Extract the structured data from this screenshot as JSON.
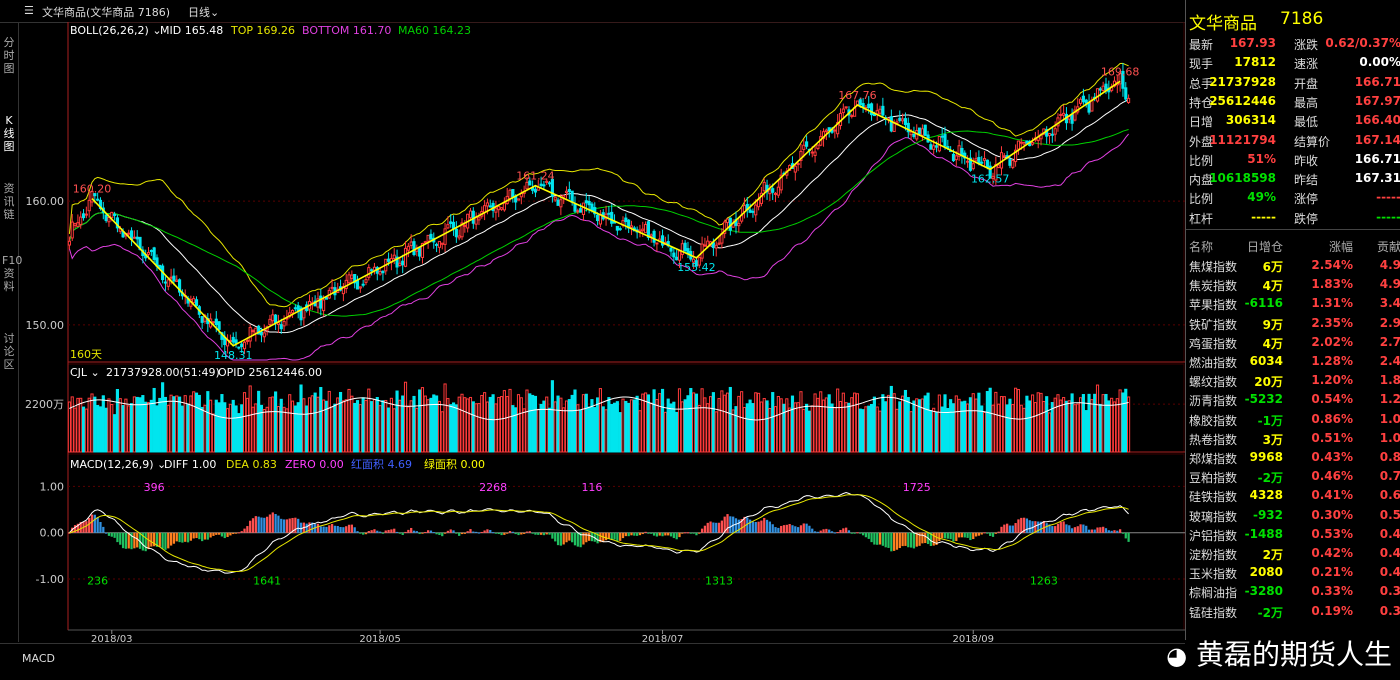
{
  "header": {
    "title": "文华商品(文华商品 7186)",
    "period": "日线"
  },
  "left_tabs": [
    "分时图",
    "K线图",
    "资讯链",
    "F10资料",
    "讨论区"
  ],
  "bottom_tab": "MACD",
  "watermark": "黄磊的期货人生",
  "quote": {
    "name": "文华商品",
    "code": "7186",
    "rows": [
      {
        "l1": "最新",
        "v1": "167.93",
        "c1": "red",
        "l2": "涨跌",
        "v2": "0.62/0.37%",
        "c2": "red"
      },
      {
        "l1": "现手",
        "v1": "17812",
        "c1": "yel",
        "l2": "速涨",
        "v2": "0.00%",
        "c2": "wht"
      },
      {
        "l1": "总手",
        "v1": "21737928",
        "c1": "yel",
        "l2": "开盘",
        "v2": "166.71",
        "c2": "red"
      },
      {
        "l1": "持仓",
        "v1": "25612446",
        "c1": "yel",
        "l2": "最高",
        "v2": "167.97",
        "c2": "red"
      },
      {
        "l1": "日增",
        "v1": "306314",
        "c1": "yel",
        "l2": "最低",
        "v2": "166.40",
        "c2": "red"
      },
      {
        "l1": "外盘",
        "v1": "11121794",
        "c1": "red",
        "l2": "结算价",
        "v2": "167.14",
        "c2": "red"
      },
      {
        "l1": "比例",
        "v1": "51%",
        "c1": "red",
        "l2": "昨收",
        "v2": "166.71",
        "c2": "wht"
      },
      {
        "l1": "内盘",
        "v1": "10618598",
        "c1": "grn",
        "l2": "昨结",
        "v2": "167.31",
        "c2": "wht"
      },
      {
        "l1": "比例",
        "v1": "49%",
        "c1": "grn",
        "l2": "涨停",
        "v2": "-----",
        "c2": "red"
      },
      {
        "l1": "杠杆",
        "v1": "-----",
        "c1": "yel",
        "l2": "跌停",
        "v2": "-----",
        "c2": "grn"
      }
    ],
    "table_headers": [
      "名称",
      "日增仓",
      "涨幅",
      "贡献"
    ],
    "table": [
      {
        "name": "焦煤指数",
        "inc": "6万",
        "chg": "2.54%",
        "contrib": "4.9"
      },
      {
        "name": "焦炭指数",
        "inc": "4万",
        "chg": "1.83%",
        "contrib": "4.9"
      },
      {
        "name": "苹果指数",
        "inc": "-6116",
        "chg": "1.31%",
        "contrib": "3.4"
      },
      {
        "name": "铁矿指数",
        "inc": "9万",
        "chg": "2.35%",
        "contrib": "2.9"
      },
      {
        "name": "鸡蛋指数",
        "inc": "4万",
        "chg": "2.02%",
        "contrib": "2.7"
      },
      {
        "name": "燃油指数",
        "inc": "6034",
        "chg": "1.28%",
        "contrib": "2.4"
      },
      {
        "name": "螺纹指数",
        "inc": "20万",
        "chg": "1.20%",
        "contrib": "1.8"
      },
      {
        "name": "沥青指数",
        "inc": "-5232",
        "chg": "0.54%",
        "contrib": "1.2"
      },
      {
        "name": "橡胶指数",
        "inc": "-1万",
        "chg": "0.86%",
        "contrib": "1.0"
      },
      {
        "name": "热卷指数",
        "inc": "3万",
        "chg": "0.51%",
        "contrib": "1.0"
      },
      {
        "name": "郑煤指数",
        "inc": "9968",
        "chg": "0.43%",
        "contrib": "0.8"
      },
      {
        "name": "豆粕指数",
        "inc": "-2万",
        "chg": "0.46%",
        "contrib": "0.7"
      },
      {
        "name": "硅铁指数",
        "inc": "4328",
        "chg": "0.41%",
        "contrib": "0.6"
      },
      {
        "name": "玻璃指数",
        "inc": "-932",
        "chg": "0.30%",
        "contrib": "0.5"
      },
      {
        "name": "沪铝指数",
        "inc": "-1488",
        "chg": "0.53%",
        "contrib": "0.4"
      },
      {
        "name": "淀粉指数",
        "inc": "2万",
        "chg": "0.42%",
        "contrib": "0.4"
      },
      {
        "name": "玉米指数",
        "inc": "2080",
        "chg": "0.21%",
        "contrib": "0.4"
      },
      {
        "name": "棕榈油指",
        "inc": "-3280",
        "chg": "0.33%",
        "contrib": "0.3"
      },
      {
        "name": "锰硅指数",
        "inc": "-2万",
        "chg": "0.19%",
        "contrib": "0.3"
      }
    ]
  },
  "chart_data": {
    "type": "candlestick",
    "bar_count": 160,
    "bar_count_label": "160天",
    "price_axis": {
      "ticks": [
        150.0,
        160.0
      ],
      "tick_labels": [
        "150.00",
        "160.00"
      ],
      "range": [
        147.0,
        173.5
      ]
    },
    "boll_legend": {
      "name": "BOLL(26,26,2)",
      "MID": "MID 165.48",
      "TOP": "TOP 169.26",
      "BOTTOM": "BOTTOM 161.70",
      "MA60": "MA60 164.23"
    },
    "pivots": [
      {
        "i": 8,
        "v": 160.2,
        "label": "160.20",
        "kind": "high"
      },
      {
        "i": 58,
        "v": 148.31,
        "label": "148.31",
        "kind": "low"
      },
      {
        "i": 165,
        "v": 161.24,
        "label": "161.24",
        "kind": "high"
      },
      {
        "i": 222,
        "v": 155.42,
        "label": "155.42",
        "kind": "low"
      },
      {
        "i": 279,
        "v": 167.76,
        "label": "167.76",
        "kind": "high"
      },
      {
        "i": 326,
        "v": 162.57,
        "label": "162.57",
        "kind": "low"
      },
      {
        "i": 372,
        "v": 169.68,
        "label": "169.68",
        "kind": "high"
      }
    ],
    "volume_legend": {
      "name": "CJL",
      "vol": "21737928.00(51:49)",
      "opid": "OPID 25612446.00"
    },
    "volume_axis": {
      "tick": 22000000,
      "tick_label": "2200万",
      "max": 34000000
    },
    "macd_legend": {
      "name": "MACD(12,26,9)",
      "DIFF": "DIFF 1.00",
      "DEA": "DEA 0.83",
      "ZERO": "ZERO 0.00",
      "RED": "红面积 4.69",
      "GREEN": "绿面积 0.00"
    },
    "macd_axis": {
      "ticks": [
        1.0,
        0.0,
        -1.0
      ],
      "tick_labels": [
        "1.00",
        "0.00",
        "-1.00"
      ],
      "range": [
        -2.1,
        1.7
      ]
    },
    "macd_area_labels": [
      {
        "i": 10,
        "label": "236",
        "color": "#00e000",
        "side": "below"
      },
      {
        "i": 30,
        "label": "396",
        "color": "#ff40ff",
        "side": "above"
      },
      {
        "i": 70,
        "label": "1641",
        "color": "#00e000",
        "side": "below"
      },
      {
        "i": 150,
        "label": "2268",
        "color": "#ff40ff",
        "side": "above"
      },
      {
        "i": 185,
        "label": "116",
        "color": "#ff40ff",
        "side": "above"
      },
      {
        "i": 230,
        "label": "1313",
        "color": "#00e000",
        "side": "below"
      },
      {
        "i": 300,
        "label": "1725",
        "color": "#ff40ff",
        "side": "above"
      },
      {
        "i": 345,
        "label": "1263",
        "color": "#00e000",
        "side": "below"
      }
    ],
    "x_labels": [
      {
        "i": 15,
        "label": "2018/03"
      },
      {
        "i": 110,
        "label": "2018/05"
      },
      {
        "i": 210,
        "label": "2018/07"
      },
      {
        "i": 320,
        "label": "2018/09"
      }
    ],
    "colors": {
      "up": "#ff3a3a",
      "down": "#00e5ee",
      "boll_mid": "#ffffff",
      "boll_top": "#e6e600",
      "boll_bottom": "#e040e0",
      "ma60": "#00d000",
      "zigzag": "#ffff00",
      "macd_pos_up": "#ff5050",
      "macd_pos_down": "#3090e0",
      "macd_neg_down": "#20c060",
      "macd_neg_up": "#ff8020",
      "diff": "#ffffff",
      "dea": "#e6e600"
    }
  }
}
